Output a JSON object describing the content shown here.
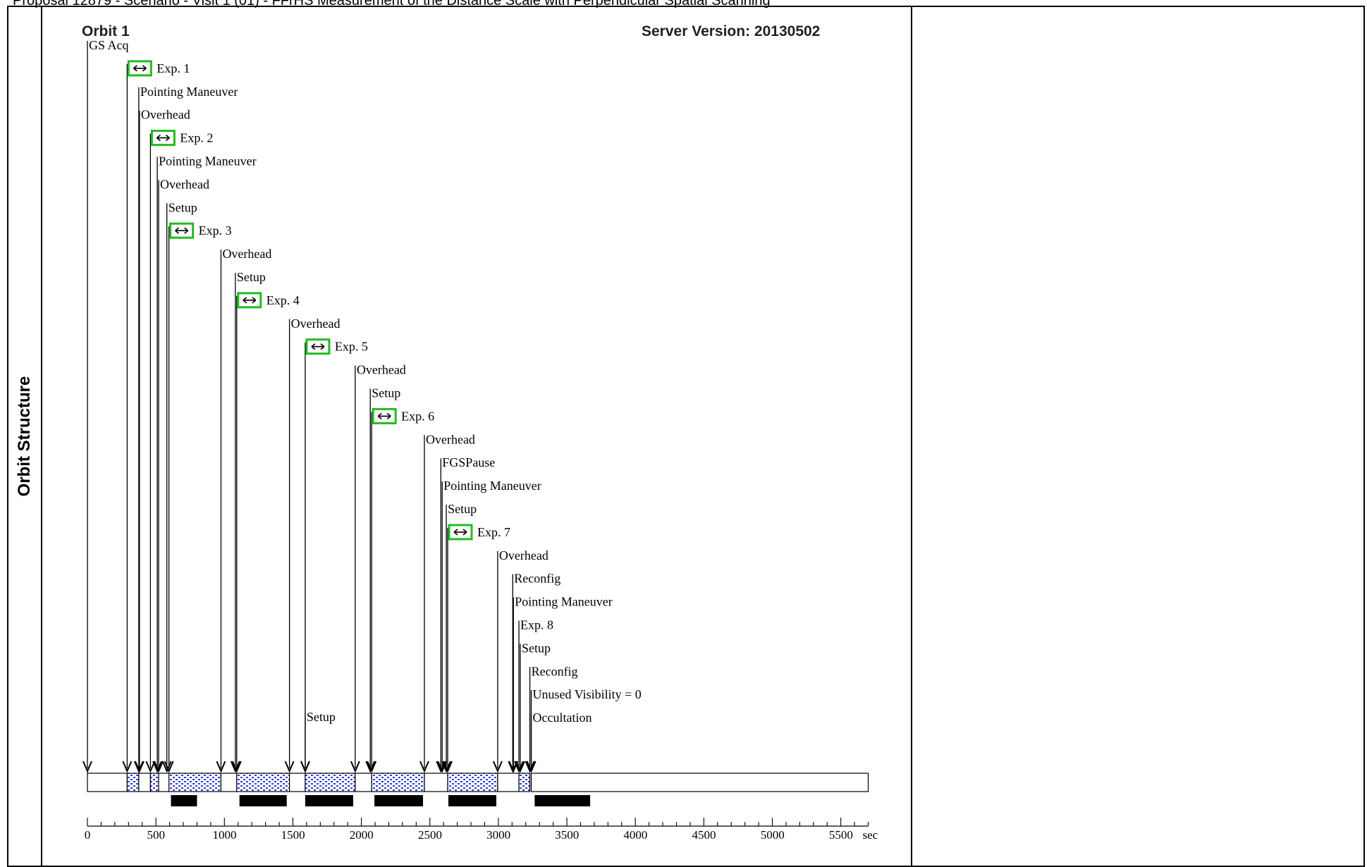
{
  "page_title": "Proposal 12879 - Scenario - Visit 1 (01) - FFrHS Measurement of the Distance Scale with Perpendicular Spatial Scanning",
  "side_label": "Orbit Structure",
  "orbit_title": "Orbit 1",
  "server_version": "Server Version: 20130502",
  "colors": {
    "exposure_box": "#22bb22",
    "exposure_fill": "#2a3bd6",
    "bar": "#000000"
  },
  "icons": {
    "exposure": "double-arrow-icon"
  },
  "axis": {
    "min": 0,
    "max": 5700,
    "unit": "sec",
    "tick_labels": [
      "0",
      "500",
      "1000",
      "1500",
      "2000",
      "2500",
      "3000",
      "3500",
      "4000",
      "4500",
      "5000",
      "5500"
    ]
  },
  "events": [
    {
      "label": "GS Acq",
      "t": 0,
      "exposure": false
    },
    {
      "label": "Exp. 1",
      "t": 290,
      "exposure": true
    },
    {
      "label": "Pointing Maneuver",
      "t": 375,
      "exposure": false
    },
    {
      "label": "Overhead",
      "t": 380,
      "exposure": false
    },
    {
      "label": "Exp. 2",
      "t": 460,
      "exposure": true
    },
    {
      "label": "Pointing Maneuver",
      "t": 510,
      "exposure": false
    },
    {
      "label": "Overhead",
      "t": 520,
      "exposure": false
    },
    {
      "label": "Setup",
      "t": 580,
      "exposure": false
    },
    {
      "label": "Exp. 3",
      "t": 595,
      "exposure": true
    },
    {
      "label": "Overhead",
      "t": 975,
      "exposure": false
    },
    {
      "label": "Setup",
      "t": 1080,
      "exposure": false
    },
    {
      "label": "Exp. 4",
      "t": 1090,
      "exposure": true
    },
    {
      "label": "Overhead",
      "t": 1475,
      "exposure": false
    },
    {
      "label": "Exp. 5",
      "t": 1590,
      "exposure": true
    },
    {
      "label": "Setup",
      "t": 1590,
      "exposure": false
    },
    {
      "label": "Overhead",
      "t": 1955,
      "exposure": false
    },
    {
      "label": "Setup",
      "t": 2065,
      "exposure": false
    },
    {
      "label": "Exp. 6",
      "t": 2075,
      "exposure": true
    },
    {
      "label": "Overhead",
      "t": 2460,
      "exposure": false
    },
    {
      "label": "FGSPause",
      "t": 2580,
      "exposure": false
    },
    {
      "label": "Pointing Maneuver",
      "t": 2590,
      "exposure": false
    },
    {
      "label": "Setup",
      "t": 2620,
      "exposure": false
    },
    {
      "label": "Exp. 7",
      "t": 2630,
      "exposure": true
    },
    {
      "label": "Overhead",
      "t": 2995,
      "exposure": false
    },
    {
      "label": "Reconfig",
      "t": 3105,
      "exposure": false
    },
    {
      "label": "Pointing Maneuver",
      "t": 3110,
      "exposure": false
    },
    {
      "label": "Exp. 8",
      "t": 3150,
      "exposure": false
    },
    {
      "label": "Setup",
      "t": 3160,
      "exposure": false
    },
    {
      "label": "Reconfig",
      "t": 3230,
      "exposure": false
    },
    {
      "label": "Unused Visibility = 0",
      "t": 3240,
      "exposure": false
    },
    {
      "label": "Occultation",
      "t": 3240,
      "exposure": false
    }
  ],
  "timeline_segments": [
    {
      "start": 0,
      "end": 290,
      "hatched": false
    },
    {
      "start": 290,
      "end": 375,
      "hatched": true
    },
    {
      "start": 375,
      "end": 460,
      "hatched": false
    },
    {
      "start": 460,
      "end": 520,
      "hatched": true
    },
    {
      "start": 520,
      "end": 595,
      "hatched": false
    },
    {
      "start": 595,
      "end": 975,
      "hatched": true
    },
    {
      "start": 975,
      "end": 1090,
      "hatched": false
    },
    {
      "start": 1090,
      "end": 1475,
      "hatched": true
    },
    {
      "start": 1475,
      "end": 1590,
      "hatched": false
    },
    {
      "start": 1590,
      "end": 1955,
      "hatched": true
    },
    {
      "start": 1955,
      "end": 2075,
      "hatched": false
    },
    {
      "start": 2075,
      "end": 2460,
      "hatched": true
    },
    {
      "start": 2460,
      "end": 2630,
      "hatched": false
    },
    {
      "start": 2630,
      "end": 2995,
      "hatched": true
    },
    {
      "start": 2995,
      "end": 3150,
      "hatched": false
    },
    {
      "start": 3150,
      "end": 3230,
      "hatched": true
    },
    {
      "start": 3240,
      "end": 5700,
      "hatched": false
    }
  ],
  "bars": [
    {
      "start": 610,
      "end": 800
    },
    {
      "start": 1110,
      "end": 1455
    },
    {
      "start": 1590,
      "end": 1940
    },
    {
      "start": 2095,
      "end": 2450
    },
    {
      "start": 2635,
      "end": 2985
    },
    {
      "start": 3265,
      "end": 3670
    }
  ]
}
